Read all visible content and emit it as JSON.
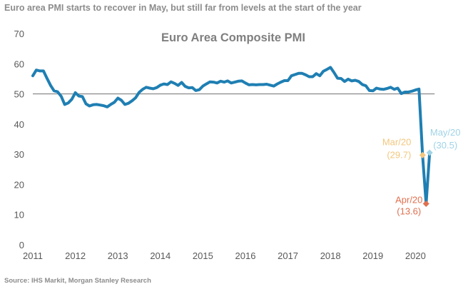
{
  "header": {
    "title": "Euro area PMI starts to recover in May, but still far from levels at the start of the year"
  },
  "footer": {
    "source": "Source: IHS Markit, Morgan Stanley Research"
  },
  "colors": {
    "line": "#1f7fb3",
    "reference": "#7f7f7f",
    "mar": "#f2c77e",
    "apr": "#e0704f",
    "may": "#9fd3e6"
  },
  "chart_data": {
    "type": "line",
    "title": "Euro Area Composite PMI",
    "xlabel": "",
    "ylabel": "",
    "xlim": [
      2011.0,
      2020.9
    ],
    "ylim": [
      0,
      70
    ],
    "y_ticks": [
      "0",
      "10",
      "20",
      "30",
      "40",
      "50",
      "60",
      "70"
    ],
    "x_ticks": [
      "2011",
      "2012",
      "2013",
      "2014",
      "2015",
      "2016",
      "2017",
      "2018",
      "2019",
      "2020"
    ],
    "reference_line": 50,
    "grid": false,
    "legend": "none",
    "series": [
      {
        "x": [
          2011.0,
          2011.083,
          2011.167,
          2011.25,
          2011.333,
          2011.417,
          2011.5,
          2011.583,
          2011.667,
          2011.75,
          2011.833,
          2011.917,
          2012.0,
          2012.083,
          2012.167,
          2012.25,
          2012.333,
          2012.417,
          2012.5,
          2012.583,
          2012.667,
          2012.75,
          2012.833,
          2012.917,
          2013.0,
          2013.083,
          2013.167,
          2013.25,
          2013.333,
          2013.417,
          2013.5,
          2013.583,
          2013.667,
          2013.75,
          2013.833,
          2013.917,
          2014.0,
          2014.083,
          2014.167,
          2014.25,
          2014.333,
          2014.417,
          2014.5,
          2014.583,
          2014.667,
          2014.75,
          2014.833,
          2014.917,
          2015.0,
          2015.083,
          2015.167,
          2015.25,
          2015.333,
          2015.417,
          2015.5,
          2015.583,
          2015.667,
          2015.75,
          2015.833,
          2015.917,
          2016.0,
          2016.083,
          2016.167,
          2016.25,
          2016.333,
          2016.417,
          2016.5,
          2016.583,
          2016.667,
          2016.75,
          2016.833,
          2016.917,
          2017.0,
          2017.083,
          2017.167,
          2017.25,
          2017.333,
          2017.417,
          2017.5,
          2017.583,
          2017.667,
          2017.75,
          2017.833,
          2017.917,
          2018.0,
          2018.083,
          2018.167,
          2018.25,
          2018.333,
          2018.417,
          2018.5,
          2018.583,
          2018.667,
          2018.75,
          2018.833,
          2018.917,
          2019.0,
          2019.083,
          2019.167,
          2019.25,
          2019.333,
          2019.417,
          2019.5,
          2019.583,
          2019.667,
          2019.75,
          2019.833,
          2019.917,
          2020.0,
          2020.083,
          2020.167,
          2020.25,
          2020.333
        ],
        "values": [
          56.0,
          57.9,
          57.6,
          57.6,
          55.2,
          52.8,
          51.0,
          50.7,
          49.2,
          46.5,
          47.0,
          48.2,
          50.4,
          49.3,
          49.1,
          46.7,
          46.0,
          46.4,
          46.5,
          46.3,
          46.1,
          45.7,
          46.5,
          47.2,
          48.6,
          47.9,
          46.5,
          46.9,
          47.7,
          48.7,
          50.5,
          51.5,
          52.2,
          51.9,
          51.7,
          52.1,
          52.9,
          53.3,
          53.1,
          54.0,
          53.5,
          52.8,
          53.8,
          52.5,
          52.0,
          52.1,
          51.1,
          51.4,
          52.6,
          53.3,
          54.0,
          53.9,
          53.6,
          54.2,
          53.9,
          54.3,
          53.6,
          53.9,
          54.2,
          54.3,
          53.6,
          53.0,
          53.1,
          53.0,
          53.1,
          53.1,
          53.2,
          52.9,
          52.6,
          53.3,
          53.9,
          54.4,
          54.4,
          56.0,
          56.4,
          56.8,
          56.8,
          56.3,
          55.7,
          55.7,
          56.7,
          56.0,
          57.5,
          58.1,
          58.8,
          57.1,
          55.2,
          55.1,
          54.1,
          54.9,
          54.3,
          54.5,
          54.1,
          53.1,
          52.7,
          51.1,
          51.0,
          51.9,
          51.6,
          51.5,
          51.8,
          52.2,
          51.5,
          51.9,
          50.1,
          50.6,
          50.6,
          50.9,
          51.3,
          51.6,
          29.7,
          13.6,
          30.5
        ]
      }
    ],
    "annotations": [
      {
        "label": "Mar/20",
        "value_label": "(29.7)",
        "x": 2020.167,
        "y": 29.7,
        "color": "mar"
      },
      {
        "label": "Apr/20",
        "value_label": "(13.6)",
        "x": 2020.25,
        "y": 13.6,
        "color": "apr"
      },
      {
        "label": "May/20",
        "value_label": "(30.5)",
        "x": 2020.333,
        "y": 30.5,
        "color": "may"
      }
    ]
  }
}
